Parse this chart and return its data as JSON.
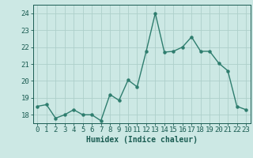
{
  "x": [
    0,
    1,
    2,
    3,
    4,
    5,
    6,
    7,
    8,
    9,
    10,
    11,
    12,
    13,
    14,
    15,
    16,
    17,
    18,
    19,
    20,
    21,
    22,
    23
  ],
  "y": [
    18.5,
    18.6,
    17.8,
    18.0,
    18.3,
    18.0,
    18.0,
    17.65,
    19.2,
    18.85,
    20.05,
    19.65,
    21.75,
    24.0,
    21.7,
    21.75,
    22.0,
    22.6,
    21.75,
    21.75,
    21.05,
    20.6,
    18.5,
    18.3
  ],
  "line_color": "#2e7d6e",
  "marker": "o",
  "markersize": 2.2,
  "linewidth": 1.0,
  "bg_color": "#cce8e4",
  "grid_color": "#aecfca",
  "xlabel": "Humidex (Indice chaleur)",
  "ylim": [
    17.5,
    24.5
  ],
  "xlim": [
    -0.5,
    23.5
  ],
  "yticks": [
    18,
    19,
    20,
    21,
    22,
    23,
    24
  ],
  "xticks": [
    0,
    1,
    2,
    3,
    4,
    5,
    6,
    7,
    8,
    9,
    10,
    11,
    12,
    13,
    14,
    15,
    16,
    17,
    18,
    19,
    20,
    21,
    22,
    23
  ],
  "tick_color": "#1a5c52",
  "label_color": "#1a5c52",
  "xlabel_fontsize": 7,
  "tick_fontsize": 6.5
}
